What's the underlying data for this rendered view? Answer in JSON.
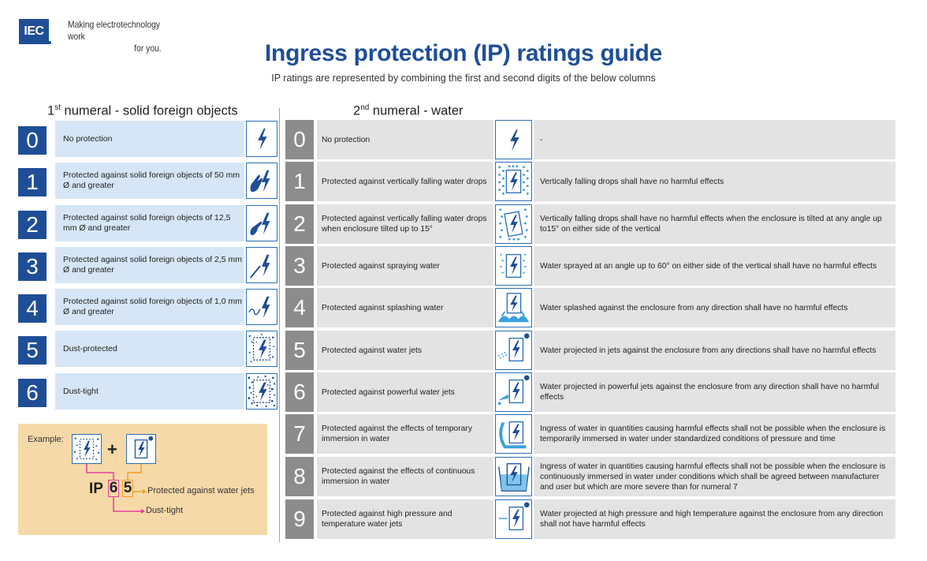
{
  "header": {
    "logo_text": "IEC",
    "tagline_line1": "Making  electrotechnology work",
    "tagline_line2": "for you.",
    "title": "Ingress protection (IP) ratings guide",
    "subtitle": "IP ratings are represented by combining the first and second digits of the below columns"
  },
  "first_numeral": {
    "title_num": "1",
    "title_sup": "st",
    "title_rest": " numeral - solid foreign objects",
    "rows": [
      {
        "digit": "0",
        "text": "No protection",
        "icon": "plain-enclosure-icon"
      },
      {
        "digit": "1",
        "text": "Protected against solid foreign objects of 50 mm Ø and greater",
        "icon": "hand-icon"
      },
      {
        "digit": "2",
        "text": "Protected against solid foreign objects of 12,5 mm Ø and greater",
        "icon": "finger-icon"
      },
      {
        "digit": "3",
        "text": "Protected against solid foreign objects of 2,5 mm Ø and greater",
        "icon": "tool-icon"
      },
      {
        "digit": "4",
        "text": "Protected against solid foreign objects of 1,0 mm Ø and greater",
        "icon": "wire-icon"
      },
      {
        "digit": "5",
        "text": "Dust-protected",
        "icon": "dust-icon"
      },
      {
        "digit": "6",
        "text": "Dust-tight",
        "icon": "dense-dust-icon"
      }
    ]
  },
  "second_numeral": {
    "title_num": "2",
    "title_sup": "nd",
    "title_rest": " numeral - water",
    "rows": [
      {
        "digit": "0",
        "text": "No protection",
        "detail": "-",
        "icon": "plain-enclosure-icon"
      },
      {
        "digit": "1",
        "text": "Protected against vertically falling water drops",
        "detail": "Vertically falling drops shall have no harmful effects",
        "icon": "falling-drops-icon"
      },
      {
        "digit": "2",
        "text": "Protected against vertically falling water drops when enclosure tilted up to 15°",
        "detail": "Vertically falling drops shall have no harmful effects when the enclosure is tilted at any angle up to15° on either side of the vertical",
        "icon": "tilted-drops-icon"
      },
      {
        "digit": "3",
        "text": "Protected against spraying water",
        "detail": "Water sprayed at an angle up to 60° on either side of the vertical shall have no harmful effects",
        "icon": "spray-icon"
      },
      {
        "digit": "4",
        "text": "Protected against splashing water",
        "detail": "Water splashed against the enclosure from any direction shall have no harmful effects",
        "icon": "splash-icon"
      },
      {
        "digit": "5",
        "text": "Protected against water jets",
        "detail": "Water projected in jets against the enclosure from any directions shall have no harmful effects",
        "icon": "water-jet-icon"
      },
      {
        "digit": "6",
        "text": "Protected against powerful water jets",
        "detail": "Water projected in powerful jets against the enclosure from any direction shall have no harmful effects",
        "icon": "powerful-jet-icon"
      },
      {
        "digit": "7",
        "text": "Protected against the effects of temporary immersion in water",
        "detail": "Ingress of water in quantities causing harmful effects shall not be possible when the enclosure is temporarily immersed in water under standardized conditions of pressure and time",
        "icon": "temporary-immersion-icon"
      },
      {
        "digit": "8",
        "text": "Protected against the effects of continuous immersion in water",
        "detail": "Ingress of water in quantities causing harmful effects shall not be possible when the enclosure is continuously immersed in water under conditions which shall be agreed between manufacturer and user but which are more severe than for numeral 7",
        "icon": "continuous-immersion-icon"
      },
      {
        "digit": "9",
        "text": "Protected against high pressure and temperature water jets",
        "detail": "Water projected at high pressure and high temperature against the enclosure from any direction shall not have harmful effects",
        "icon": "high-pressure-jet-icon"
      }
    ]
  },
  "example": {
    "label": "Example:",
    "plus": "+",
    "prefix": "IP",
    "digit1": "6",
    "digit2": "5",
    "digit2_meaning": "Protected against water jets",
    "digit1_meaning": "Dust-tight"
  },
  "colors": {
    "brand_blue": "#1f4e97",
    "light_blue": "#d6e6f7",
    "grey_number": "#8c8c8c",
    "grey_row": "#e3e3e3",
    "example_bg": "#f6d9a8",
    "magenta": "#e040a0",
    "orange": "#f0a020"
  }
}
